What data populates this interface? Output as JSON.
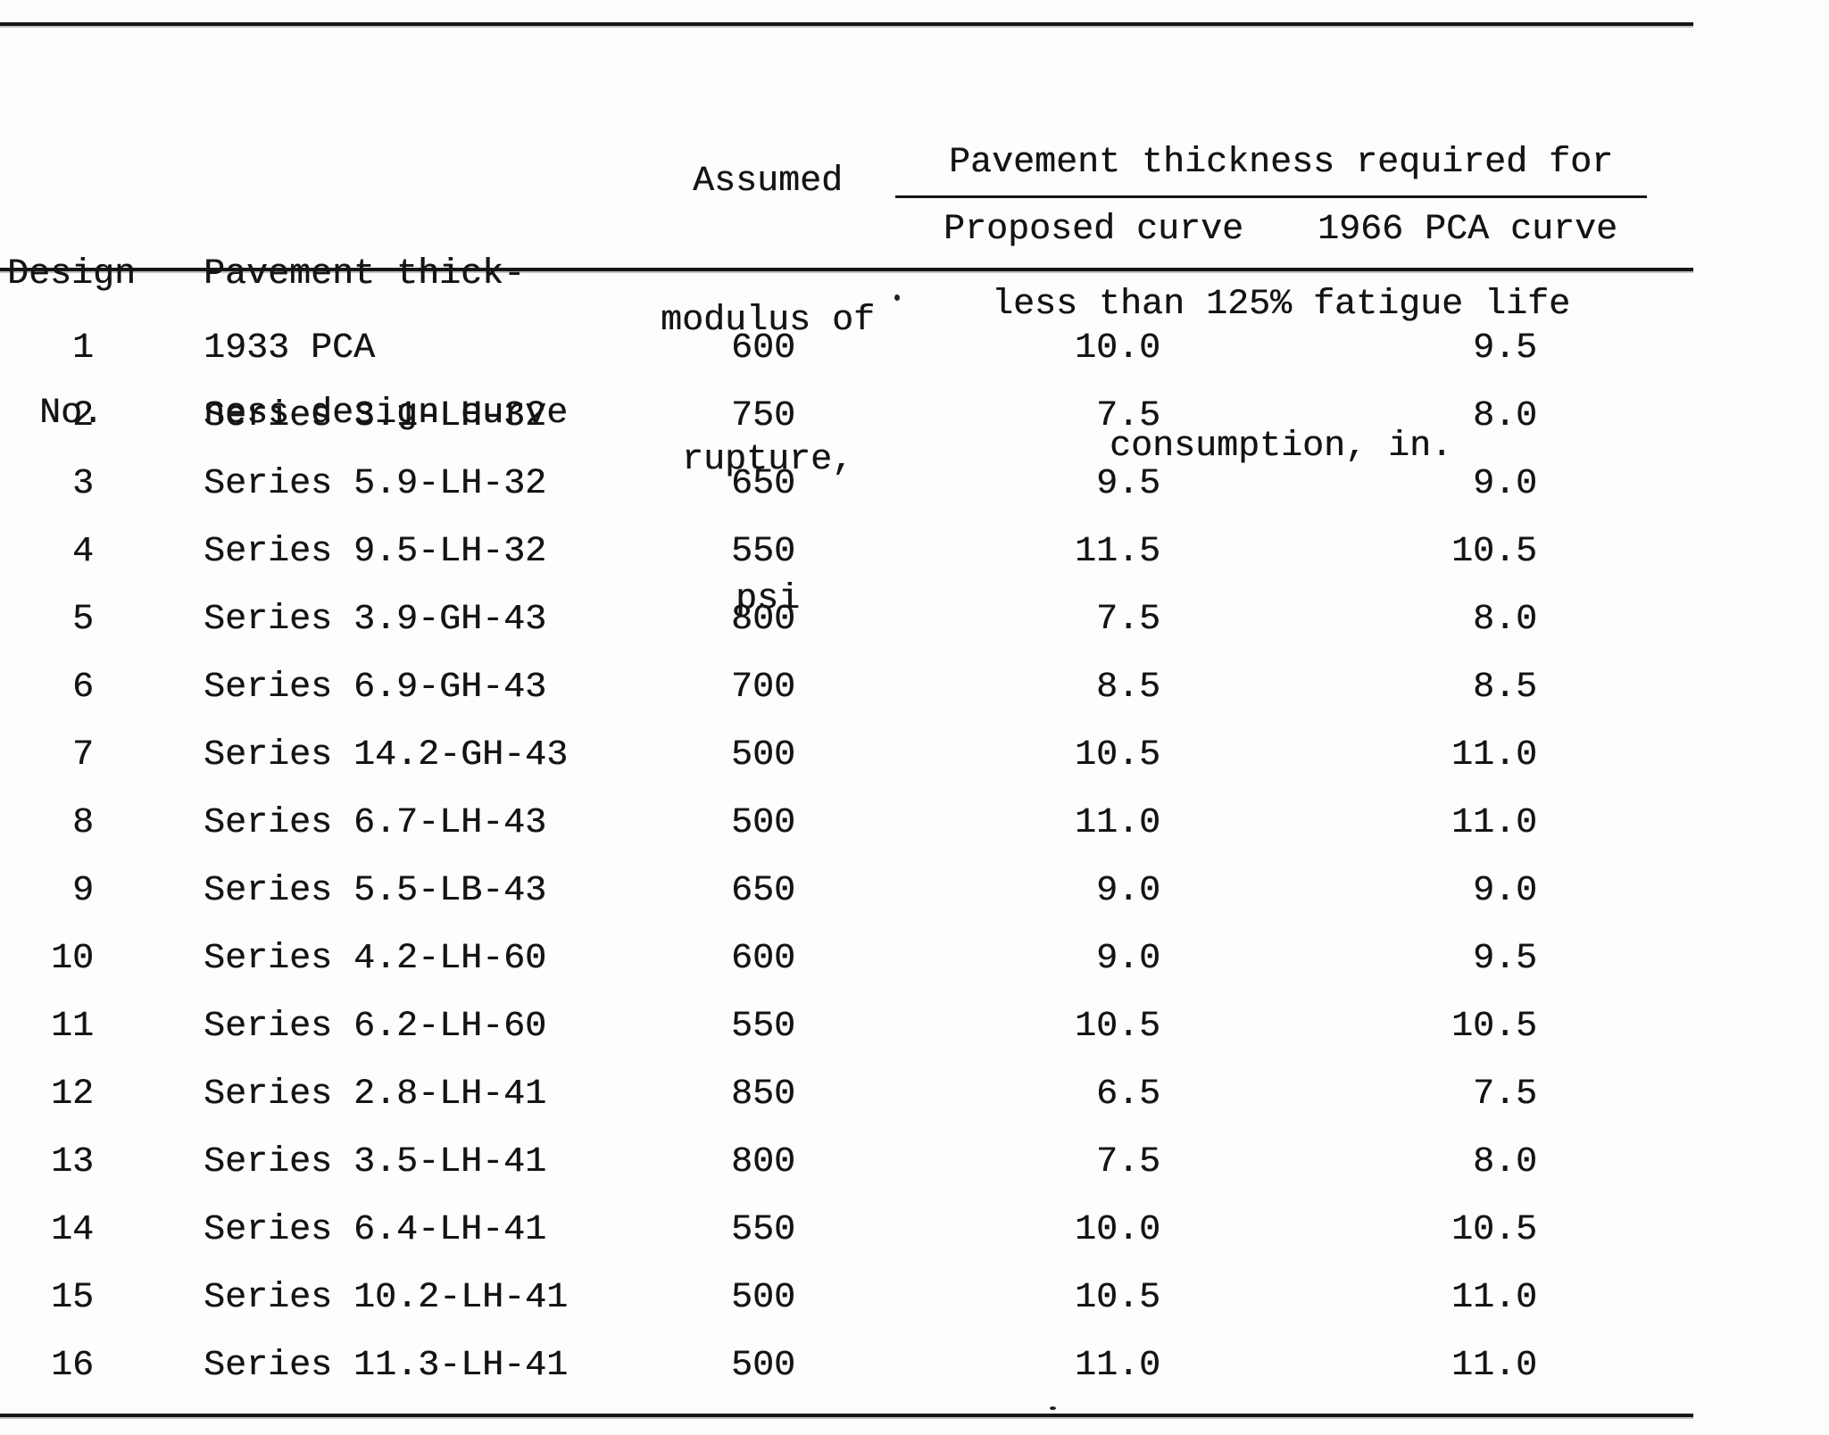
{
  "meta": {
    "ink_color": "#161616",
    "paper_color": "#fdfdfc"
  },
  "table": {
    "header": {
      "design_no": [
        "Design",
        "No."
      ],
      "design_curve": [
        "Pavement thick-",
        "ness design curve"
      ],
      "modulus": [
        "Assumed",
        "modulus of",
        "rupture,",
        "psi"
      ],
      "span": [
        "Pavement thickness required for",
        "less than 125% fatigue life",
        "consumption, in."
      ],
      "proposed": "Proposed curve",
      "pca1966": "1966 PCA curve"
    },
    "rows": [
      {
        "no": "1",
        "curve": "1933 PCA",
        "modulus": "600",
        "proposed": "10.0",
        "pca1966": "9.5"
      },
      {
        "no": "2",
        "curve": "Series 3.1-LH-32",
        "modulus": "750",
        "proposed": "7.5",
        "pca1966": "8.0"
      },
      {
        "no": "3",
        "curve": "Series 5.9-LH-32",
        "modulus": "650",
        "proposed": "9.5",
        "pca1966": "9.0"
      },
      {
        "no": "4",
        "curve": "Series 9.5-LH-32",
        "modulus": "550",
        "proposed": "11.5",
        "pca1966": "10.5"
      },
      {
        "no": "5",
        "curve": "Series 3.9-GH-43",
        "modulus": "800",
        "proposed": "7.5",
        "pca1966": "8.0"
      },
      {
        "no": "6",
        "curve": "Series 6.9-GH-43",
        "modulus": "700",
        "proposed": "8.5",
        "pca1966": "8.5"
      },
      {
        "no": "7",
        "curve": "Series 14.2-GH-43",
        "modulus": "500",
        "proposed": "10.5",
        "pca1966": "11.0"
      },
      {
        "no": "8",
        "curve": "Series 6.7-LH-43",
        "modulus": "500",
        "proposed": "11.0",
        "pca1966": "11.0"
      },
      {
        "no": "9",
        "curve": "Series 5.5-LB-43",
        "modulus": "650",
        "proposed": "9.0",
        "pca1966": "9.0"
      },
      {
        "no": "10",
        "curve": "Series 4.2-LH-60",
        "modulus": "600",
        "proposed": "9.0",
        "pca1966": "9.5"
      },
      {
        "no": "11",
        "curve": "Series 6.2-LH-60",
        "modulus": "550",
        "proposed": "10.5",
        "pca1966": "10.5"
      },
      {
        "no": "12",
        "curve": "Series 2.8-LH-41",
        "modulus": "850",
        "proposed": "6.5",
        "pca1966": "7.5"
      },
      {
        "no": "13",
        "curve": "Series 3.5-LH-41",
        "modulus": "800",
        "proposed": "7.5",
        "pca1966": "8.0"
      },
      {
        "no": "14",
        "curve": "Series 6.4-LH-41",
        "modulus": "550",
        "proposed": "10.0",
        "pca1966": "10.5"
      },
      {
        "no": "15",
        "curve": "Series 10.2-LH-41",
        "modulus": "500",
        "proposed": "10.5",
        "pca1966": "11.0"
      },
      {
        "no": "16",
        "curve": "Series 11.3-LH-41",
        "modulus": "500",
        "proposed": "11.0",
        "pca1966": "11.0"
      }
    ]
  }
}
